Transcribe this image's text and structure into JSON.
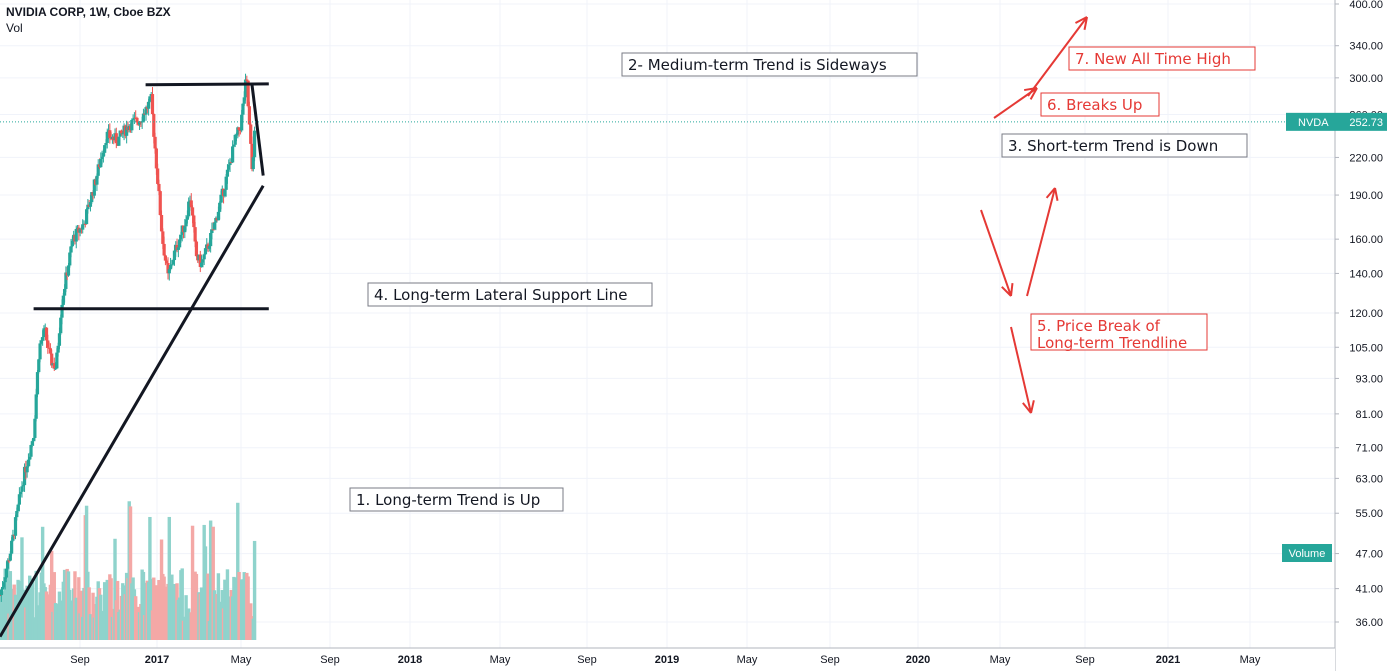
{
  "header": {
    "title": "NVIDIA CORP, 1W, Cboe BZX",
    "indicator": "Vol"
  },
  "price_badge": {
    "symbol": "NVDA",
    "value": "252.73",
    "color": "#26a69a"
  },
  "volume_badge": {
    "label": "Volume",
    "color": "#26a69a"
  },
  "colors": {
    "up": "#26a69a",
    "down": "#ef5350",
    "vol_up": "#8fd3cc",
    "vol_down": "#f4a8a6",
    "annotation_red": "#e53935",
    "annotation_black": "#131722"
  },
  "annotations": [
    {
      "id": "a1",
      "text": "1. Long-term Trend is Up",
      "color": "black"
    },
    {
      "id": "a2",
      "text": "2- Medium-term Trend is Sideways",
      "color": "black"
    },
    {
      "id": "a3",
      "text": "3. Short-term Trend is Down",
      "color": "black"
    },
    {
      "id": "a4",
      "text": "4. Long-term Lateral Support Line",
      "color": "black"
    },
    {
      "id": "a5",
      "text": "5. Price Break of Long-term Trendline",
      "lines": [
        "5. Price Break of",
        "Long-term Trendline"
      ],
      "color": "red"
    },
    {
      "id": "a6",
      "text": "6. Breaks Up",
      "color": "red"
    },
    {
      "id": "a7",
      "text": "7. New All Time High",
      "color": "red"
    }
  ],
  "chart_data": {
    "type": "candlestick",
    "title": "NVIDIA CORP, 1W, Cboe BZX",
    "scale": "log",
    "ylim": [
      33,
      400
    ],
    "y_ticks": [
      "400.00",
      "340.00",
      "300.00",
      "260.00",
      "220.00",
      "190.00",
      "160.00",
      "140.00",
      "120.00",
      "105.00",
      "93.00",
      "81.00",
      "71.00",
      "63.00",
      "55.00",
      "47.00",
      "41.00",
      "36.00"
    ],
    "x_ticks": [
      "Sep",
      "2017",
      "May",
      "Sep",
      "2018",
      "May",
      "Sep",
      "2019",
      "May",
      "Sep",
      "2020",
      "May",
      "Sep",
      "2021",
      "May"
    ],
    "last_price": 252.73,
    "series": [
      {
        "name": "NVDA",
        "anchors": [
          [
            "2016-06",
            40
          ],
          [
            "2016-08",
            48
          ],
          [
            "2016-10",
            62
          ],
          [
            "2016-12",
            75
          ],
          [
            "2017-01",
            105
          ],
          [
            "2017-02",
            112
          ],
          [
            "2017-03",
            100
          ],
          [
            "2017-04",
            97
          ],
          [
            "2017-05",
            125
          ],
          [
            "2017-07",
            160
          ],
          [
            "2017-09",
            170
          ],
          [
            "2017-11",
            200
          ],
          [
            "2018-01",
            240
          ],
          [
            "2018-03",
            235
          ],
          [
            "2018-05",
            250
          ],
          [
            "2018-07",
            255
          ],
          [
            "2018-09",
            275
          ],
          [
            "2018-10",
            210
          ],
          [
            "2018-11",
            160
          ],
          [
            "2018-12",
            138
          ],
          [
            "2019-01",
            150
          ],
          [
            "2019-03",
            170
          ],
          [
            "2019-04",
            190
          ],
          [
            "2019-05",
            150
          ],
          [
            "2019-06",
            145
          ],
          [
            "2019-08",
            165
          ],
          [
            "2019-10",
            195
          ],
          [
            "2019-12",
            235
          ],
          [
            "2020-01",
            250
          ],
          [
            "2020-02",
            300
          ],
          [
            "2020-03",
            210
          ],
          [
            "2020-03-20",
            253
          ]
        ]
      }
    ],
    "volume": {
      "name": "Vol",
      "range_m": [
        0,
        120
      ]
    },
    "trendlines": [
      {
        "name": "long-term-up",
        "from": [
          "2016-06",
          34
        ],
        "to": [
          "2020-05",
          197
        ]
      },
      {
        "name": "lateral-support",
        "from": [
          "2016-12",
          122
        ],
        "to": [
          "2020-06",
          122
        ]
      },
      {
        "name": "medium-top",
        "from": [
          "2018-08",
          292
        ],
        "to": [
          "2020-06",
          293
        ]
      },
      {
        "name": "short-down",
        "from": [
          "2020-03",
          292
        ],
        "to": [
          "2020-05",
          205
        ]
      }
    ]
  }
}
